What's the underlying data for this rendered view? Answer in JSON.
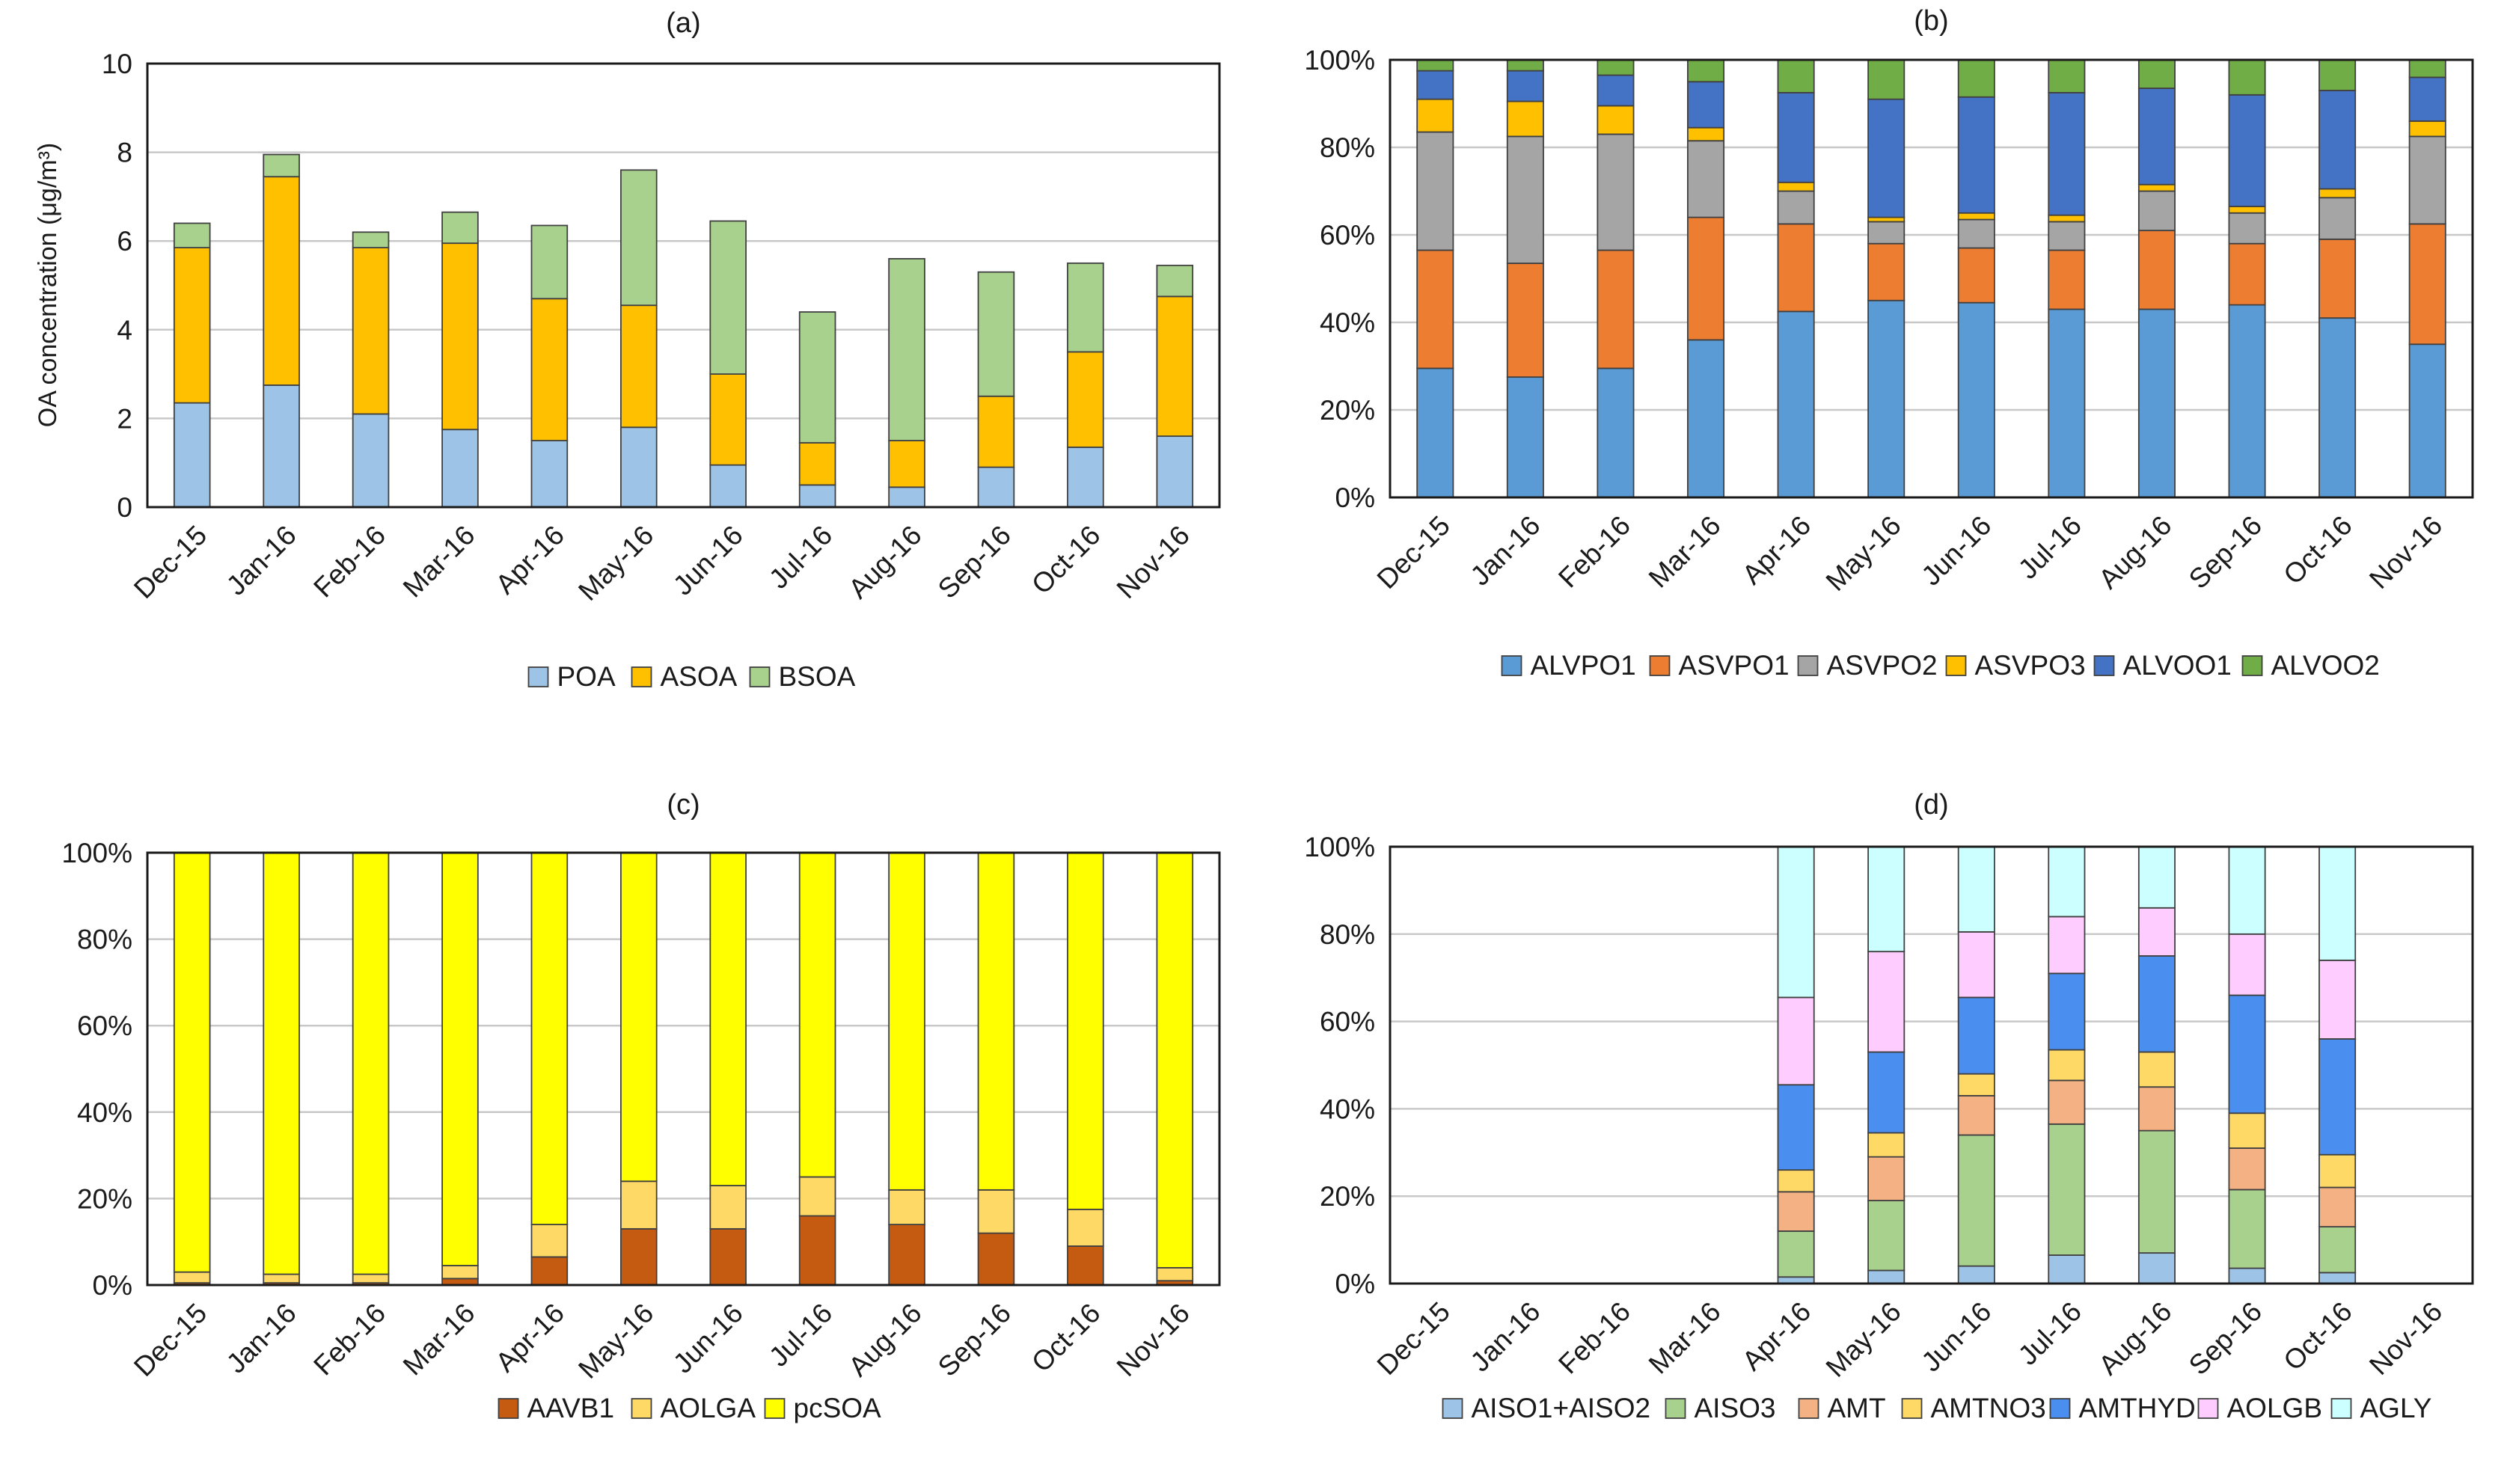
{
  "chart_data": [
    {
      "type": "bar",
      "stacked": true,
      "panel_label": "(a)",
      "title": "",
      "xlabel": "",
      "ylabel": "OA concentration (μg/m³)",
      "ylim": [
        0,
        10
      ],
      "yticks": [
        "0",
        "2",
        "4",
        "6",
        "8",
        "10"
      ],
      "grid": true,
      "legend": "bottom",
      "categories": [
        "Dec-15",
        "Jan-16",
        "Feb-16",
        "Mar-16",
        "Apr-16",
        "May-16",
        "Jun-16",
        "Jul-16",
        "Aug-16",
        "Sep-16",
        "Oct-16",
        "Nov-16"
      ],
      "series": [
        {
          "name": "POA",
          "color": "#9dc3e6",
          "values": [
            2.35,
            2.75,
            2.1,
            1.75,
            1.5,
            1.8,
            0.95,
            0.5,
            0.45,
            0.9,
            1.35,
            1.6
          ]
        },
        {
          "name": "ASOA",
          "color": "#ffc000",
          "values": [
            3.5,
            4.7,
            3.75,
            4.2,
            3.2,
            2.75,
            2.05,
            0.95,
            1.05,
            1.6,
            2.15,
            3.15
          ]
        },
        {
          "name": "BSOA",
          "color": "#a9d18e",
          "values": [
            0.55,
            0.5,
            0.35,
            0.7,
            1.65,
            3.05,
            3.45,
            2.95,
            4.1,
            2.8,
            2.0,
            0.7
          ]
        }
      ]
    },
    {
      "type": "bar",
      "stacked": true,
      "panel_label": "(b)",
      "title": "",
      "xlabel": "",
      "ylabel": "",
      "ylim": [
        0,
        100
      ],
      "yticks": [
        "0%",
        "20%",
        "40%",
        "60%",
        "80%",
        "100%"
      ],
      "grid": true,
      "legend": "bottom",
      "categories": [
        "Dec-15",
        "Jan-16",
        "Feb-16",
        "Mar-16",
        "Apr-16",
        "May-16",
        "Jun-16",
        "Jul-16",
        "Aug-16",
        "Sep-16",
        "Oct-16",
        "Nov-16"
      ],
      "series": [
        {
          "name": "ALVPO1",
          "color": "#5b9bd5",
          "values": [
            29.5,
            27.5,
            29.5,
            36,
            42.5,
            45,
            44.5,
            43,
            43,
            44,
            41,
            35
          ]
        },
        {
          "name": "ASVPO1",
          "color": "#ed7d31",
          "values": [
            27,
            26,
            27,
            28,
            20,
            13,
            12.5,
            13.5,
            18,
            14,
            18,
            27.5
          ]
        },
        {
          "name": "ASVPO2",
          "color": "#a5a5a5",
          "values": [
            27,
            29,
            26.5,
            17.5,
            7.5,
            5,
            6.5,
            6.5,
            9,
            7,
            9.5,
            20
          ]
        },
        {
          "name": "ASVPO3",
          "color": "#ffc000",
          "values": [
            7.5,
            8,
            6.5,
            3,
            2,
            1,
            1.5,
            1.5,
            1.5,
            1.5,
            2,
            3.5
          ]
        },
        {
          "name": "ALVOO1",
          "color": "#4472c4",
          "values": [
            6.5,
            7,
            7,
            10.5,
            20.5,
            27,
            26.5,
            28,
            22,
            25.5,
            22.5,
            10
          ]
        },
        {
          "name": "ALVOO2",
          "color": "#70ad47",
          "values": [
            2.5,
            2.5,
            3.5,
            5,
            7.5,
            9,
            8.5,
            7.5,
            6.5,
            8,
            7,
            4
          ]
        }
      ]
    },
    {
      "type": "bar",
      "stacked": true,
      "panel_label": "(c)",
      "title": "",
      "xlabel": "",
      "ylabel": "",
      "ylim": [
        0,
        100
      ],
      "yticks": [
        "0%",
        "20%",
        "40%",
        "60%",
        "80%",
        "100%"
      ],
      "grid": true,
      "legend": "bottom",
      "categories": [
        "Dec-15",
        "Jan-16",
        "Feb-16",
        "Mar-16",
        "Apr-16",
        "May-16",
        "Jun-16",
        "Jul-16",
        "Aug-16",
        "Sep-16",
        "Oct-16",
        "Nov-16"
      ],
      "series": [
        {
          "name": "AAVB1",
          "color": "#c55a11",
          "values": [
            0.5,
            0.5,
            0.5,
            1.5,
            6.5,
            13,
            13,
            16,
            14,
            12,
            9,
            1
          ]
        },
        {
          "name": "AOLGA",
          "color": "#ffd966",
          "values": [
            2.5,
            2,
            2,
            3,
            7.5,
            11,
            10,
            9,
            8,
            10,
            8.5,
            3
          ]
        },
        {
          "name": "pcSOA",
          "color": "#ffff00",
          "values": [
            97,
            97.5,
            97.5,
            95.5,
            86,
            76,
            77,
            75,
            78,
            78,
            82.5,
            96
          ]
        }
      ]
    },
    {
      "type": "bar",
      "stacked": true,
      "panel_label": "(d)",
      "title": "",
      "xlabel": "",
      "ylabel": "",
      "ylim": [
        0,
        100
      ],
      "yticks": [
        "0%",
        "20%",
        "40%",
        "60%",
        "80%",
        "100%"
      ],
      "grid": true,
      "legend": "bottom",
      "categories": [
        "Dec-15",
        "Jan-16",
        "Feb-16",
        "Mar-16",
        "Apr-16",
        "May-16",
        "Jun-16",
        "Jul-16",
        "Aug-16",
        "Sep-16",
        "Oct-16",
        "Nov-16"
      ],
      "series": [
        {
          "name": "AISO1+AISO2",
          "color": "#9dc3e6",
          "values": [
            0,
            0,
            0,
            0,
            1.5,
            3,
            4,
            6.5,
            7,
            3.5,
            2.5,
            0
          ]
        },
        {
          "name": "AISO3",
          "color": "#a9d18e",
          "values": [
            0,
            0,
            0,
            0,
            10.5,
            16,
            30,
            30,
            28,
            18,
            10.5,
            0
          ]
        },
        {
          "name": "AMT",
          "color": "#f4b183",
          "values": [
            0,
            0,
            0,
            0,
            9,
            10,
            9,
            10,
            10,
            9.5,
            9,
            0
          ]
        },
        {
          "name": "AMTNO3",
          "color": "#ffd966",
          "values": [
            0,
            0,
            0,
            0,
            5,
            5.5,
            5,
            7,
            8,
            8,
            7.5,
            0
          ]
        },
        {
          "name": "AMTHYD",
          "color": "#4a8ef0",
          "values": [
            0,
            0,
            0,
            0,
            19.5,
            18.5,
            17.5,
            17.5,
            22,
            27,
            26.5,
            0
          ]
        },
        {
          "name": "AOLGB",
          "color": "#ffccff",
          "values": [
            0,
            0,
            0,
            0,
            20,
            23,
            15,
            13,
            11,
            14,
            18,
            0
          ]
        },
        {
          "name": "AGLY",
          "color": "#ccffff",
          "values": [
            0,
            0,
            0,
            0,
            34.5,
            24,
            19.5,
            16,
            14,
            20,
            26,
            0
          ]
        }
      ]
    }
  ]
}
